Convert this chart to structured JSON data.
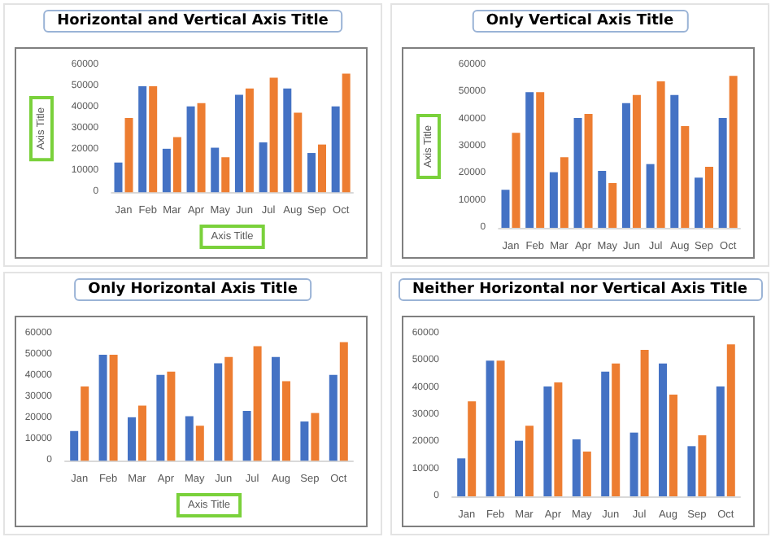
{
  "chart_data": [
    {
      "type": "bar",
      "title": "Horizontal and Vertical Axis Title",
      "xlabel": "Axis Title",
      "ylabel": "Axis Title",
      "categories": [
        "Jan",
        "Feb",
        "Mar",
        "Apr",
        "May",
        "Jun",
        "Jul",
        "Aug",
        "Sep",
        "Oct"
      ],
      "series": [
        {
          "color": "#4472c4",
          "values": [
            14000,
            50000,
            20500,
            40500,
            21000,
            46000,
            23500,
            49000,
            18500,
            40500
          ]
        },
        {
          "color": "#ed7d31",
          "values": [
            35000,
            50000,
            26000,
            42000,
            16500,
            49000,
            54000,
            37500,
            22500,
            56000
          ]
        }
      ],
      "ylim": [
        0,
        60000
      ],
      "yticks": [
        0,
        10000,
        20000,
        30000,
        40000,
        50000,
        60000
      ],
      "grid": false
    },
    {
      "type": "bar",
      "title": "Only Vertical Axis Title",
      "ylabel": "Axis Title",
      "categories": [
        "Jan",
        "Feb",
        "Mar",
        "Apr",
        "May",
        "Jun",
        "Jul",
        "Aug",
        "Sep",
        "Oct"
      ],
      "series": [
        {
          "color": "#4472c4",
          "values": [
            14000,
            50000,
            20500,
            40500,
            21000,
            46000,
            23500,
            49000,
            18500,
            40500
          ]
        },
        {
          "color": "#ed7d31",
          "values": [
            35000,
            50000,
            26000,
            42000,
            16500,
            49000,
            54000,
            37500,
            22500,
            56000
          ]
        }
      ],
      "ylim": [
        0,
        60000
      ],
      "yticks": [
        0,
        10000,
        20000,
        30000,
        40000,
        50000,
        60000
      ],
      "grid": false
    },
    {
      "type": "bar",
      "title": "Only Horizontal Axis Title",
      "xlabel": "Axis Title",
      "categories": [
        "Jan",
        "Feb",
        "Mar",
        "Apr",
        "May",
        "Jun",
        "Jul",
        "Aug",
        "Sep",
        "Oct"
      ],
      "series": [
        {
          "color": "#4472c4",
          "values": [
            14000,
            50000,
            20500,
            40500,
            21000,
            46000,
            23500,
            49000,
            18500,
            40500
          ]
        },
        {
          "color": "#ed7d31",
          "values": [
            35000,
            50000,
            26000,
            42000,
            16500,
            49000,
            54000,
            37500,
            22500,
            56000
          ]
        }
      ],
      "ylim": [
        0,
        60000
      ],
      "yticks": [
        0,
        10000,
        20000,
        30000,
        40000,
        50000,
        60000
      ],
      "grid": false
    },
    {
      "type": "bar",
      "title": "Neither Horizontal nor Vertical Axis Title",
      "categories": [
        "Jan",
        "Feb",
        "Mar",
        "Apr",
        "May",
        "Jun",
        "Jul",
        "Aug",
        "Sep",
        "Oct"
      ],
      "series": [
        {
          "color": "#4472c4",
          "values": [
            14000,
            50000,
            20500,
            40500,
            21000,
            46000,
            23500,
            49000,
            18500,
            40500
          ]
        },
        {
          "color": "#ed7d31",
          "values": [
            35000,
            50000,
            26000,
            42000,
            16500,
            49000,
            54000,
            37500,
            22500,
            56000
          ]
        }
      ],
      "ylim": [
        0,
        60000
      ],
      "yticks": [
        0,
        10000,
        20000,
        30000,
        40000,
        50000,
        60000
      ],
      "grid": false
    }
  ]
}
